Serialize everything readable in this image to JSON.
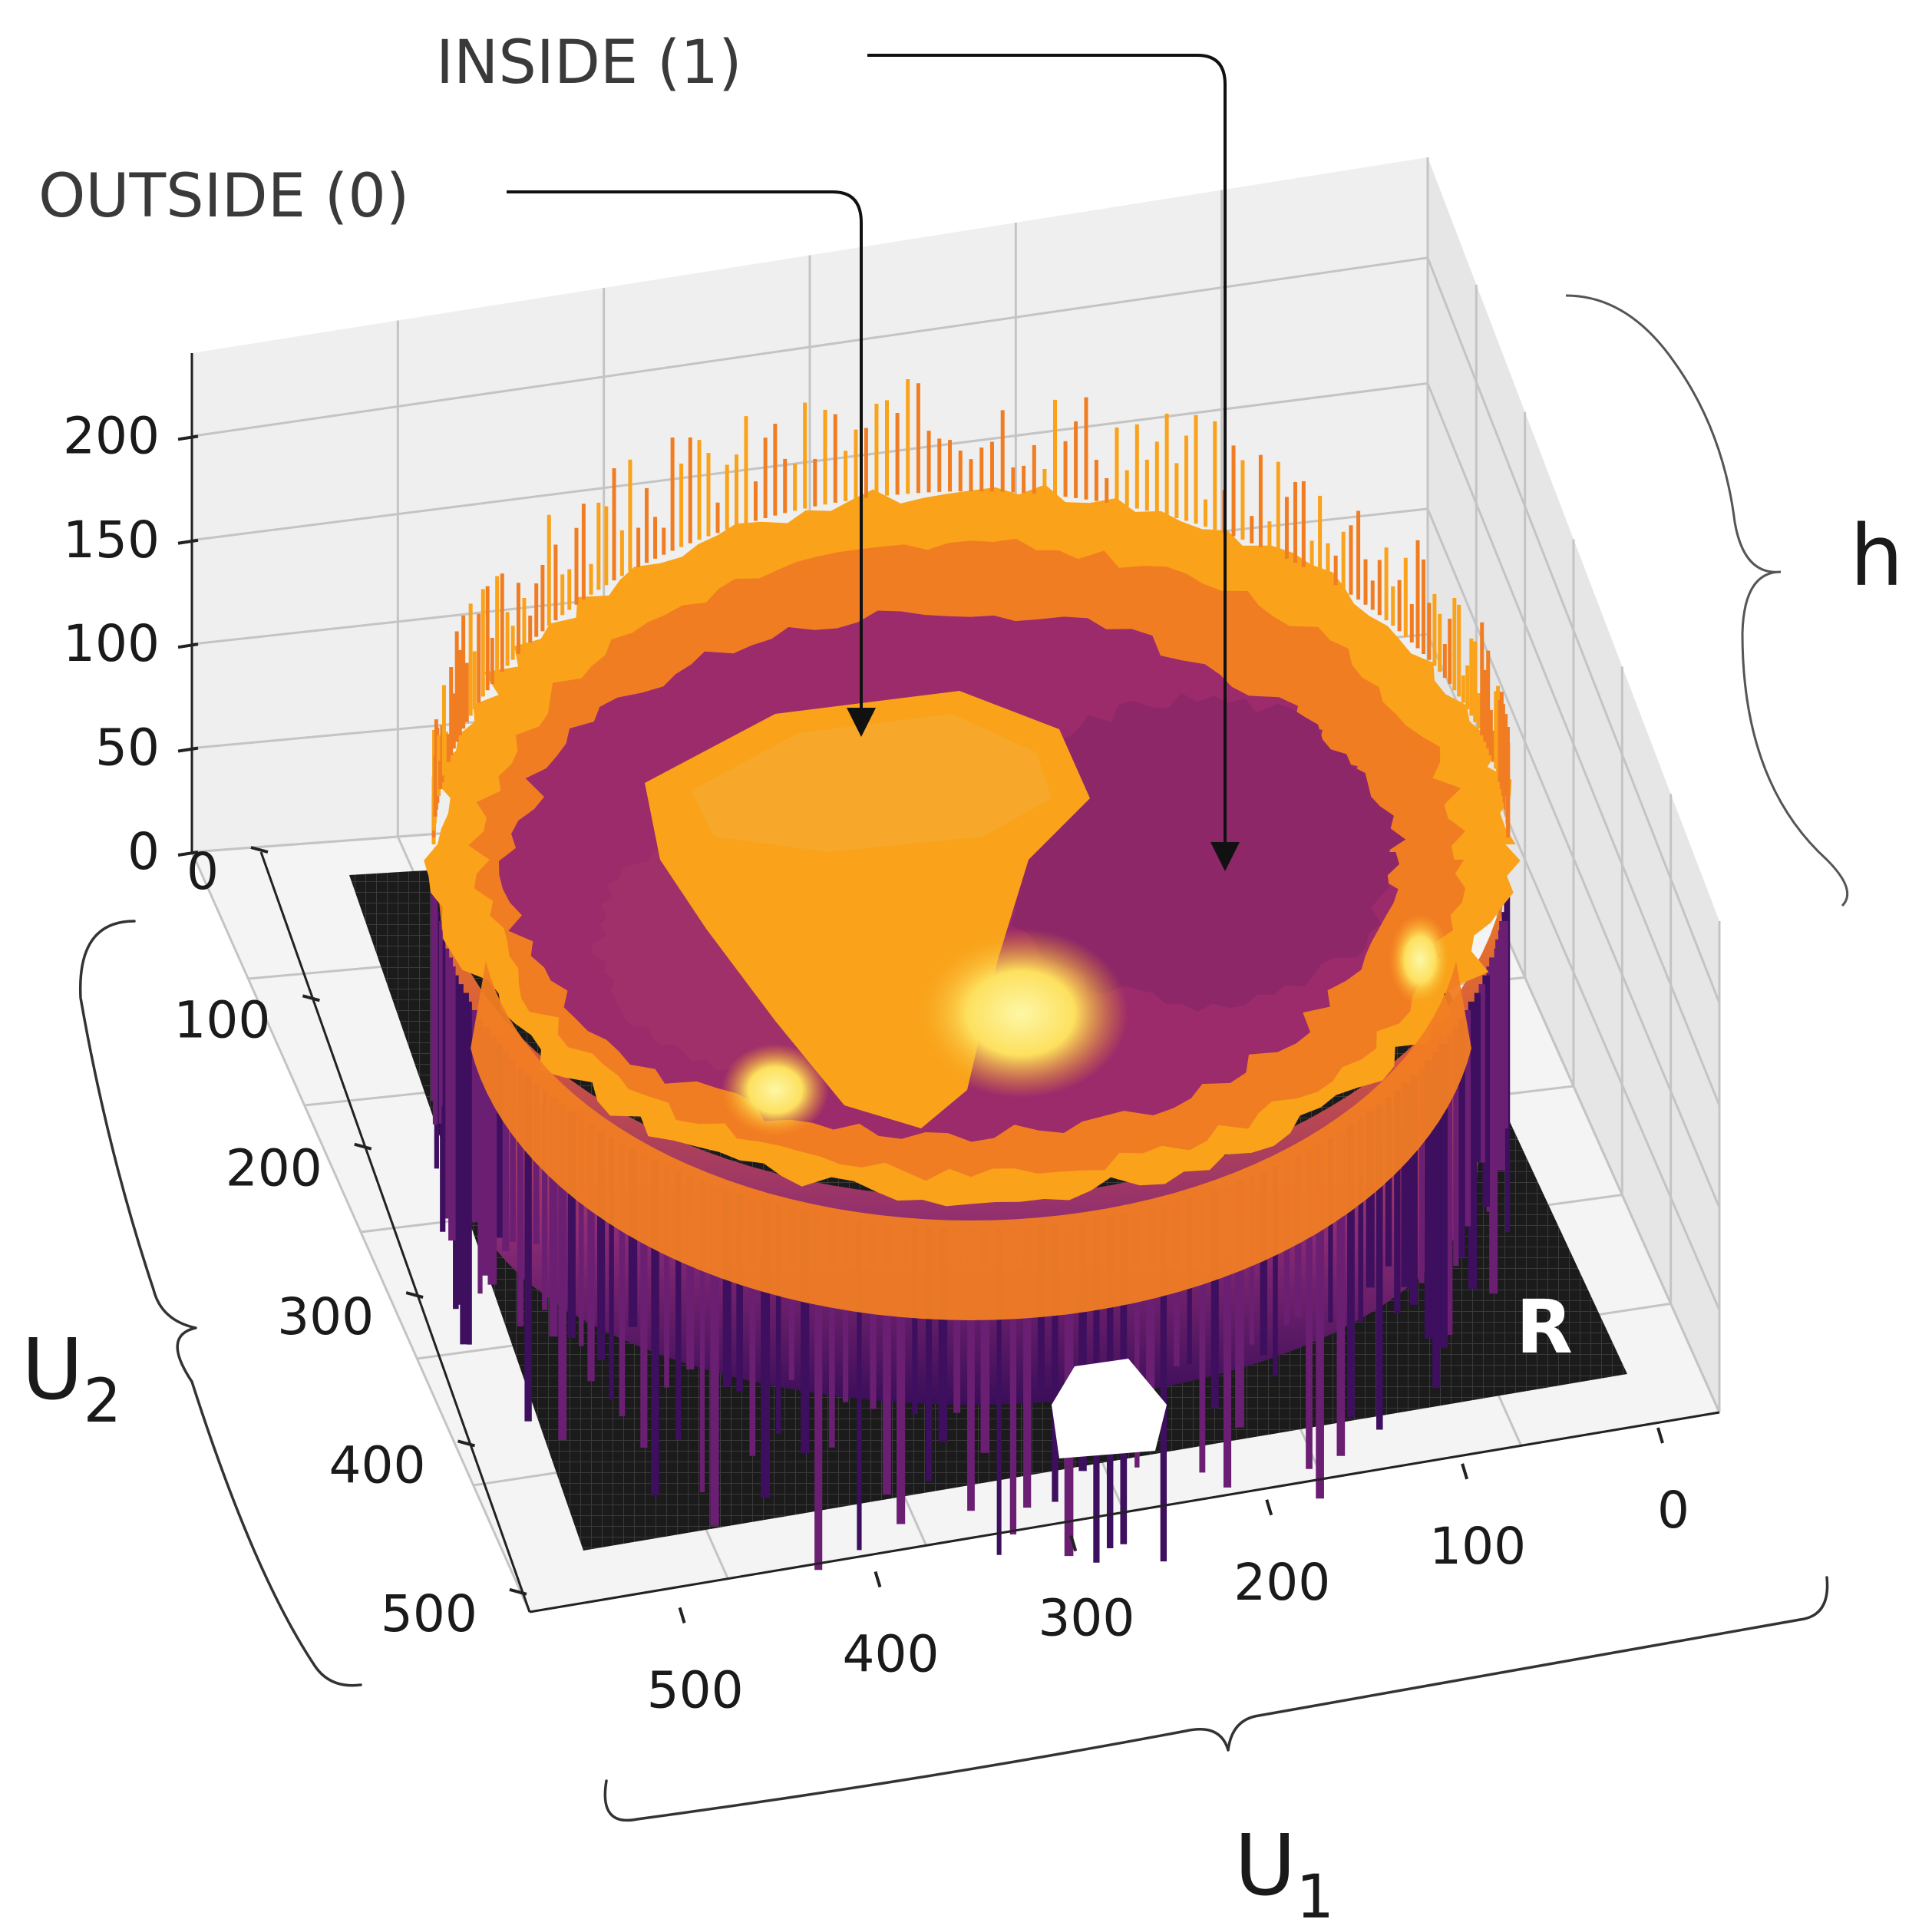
{
  "chart_data": {
    "type": "surface3d",
    "title": "",
    "annotations": [
      {
        "id": "outside",
        "text": "OUTSIDE (0)",
        "points_to": "raised central flat region"
      },
      {
        "id": "inside",
        "text": "INSIDE (1)",
        "points_to": "lower right enclosed region"
      }
    ],
    "region_label": "R",
    "axes": {
      "x": {
        "label": "U",
        "subscript": "1",
        "range": [
          0,
          512
        ],
        "ticks": [
          0,
          100,
          200,
          300,
          400,
          500
        ]
      },
      "y": {
        "label": "U",
        "subscript": "2",
        "range": [
          0,
          512
        ],
        "ticks": [
          0,
          100,
          200,
          300,
          400,
          500
        ]
      },
      "z": {
        "label": "h",
        "range": [
          0,
          240
        ],
        "ticks": [
          0,
          50,
          100,
          150,
          200
        ]
      }
    },
    "colormap": "inferno",
    "colors": {
      "base": "#1b1b1b",
      "dark_purple": "#3d0f5e",
      "purple": "#6b1f73",
      "magenta": "#9c2b6b",
      "red_orange": "#d8473a",
      "orange": "#f17d23",
      "amber": "#f9a21a",
      "yellow": "#fde05e",
      "pale_yellow": "#fcf8a8"
    }
  }
}
